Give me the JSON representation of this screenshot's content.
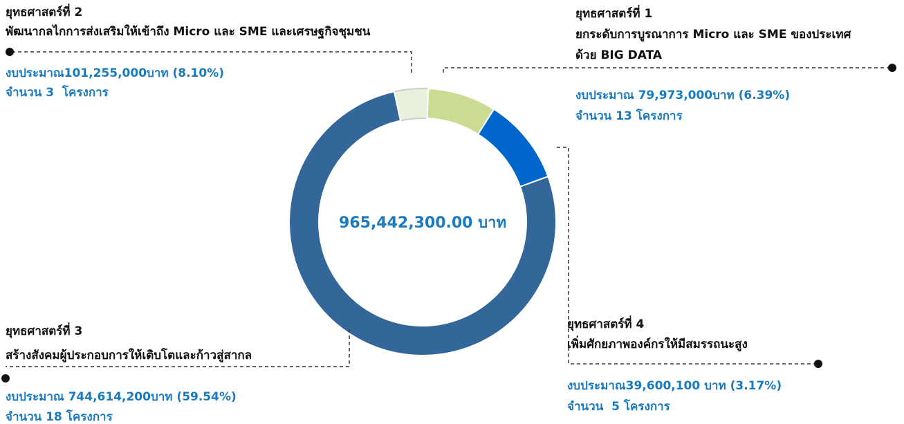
{
  "chart_data": {
    "type": "donut",
    "center_label": "965,442,300.00 บาท",
    "categories": [
      "ยุทธศาสตร์ที่ 4",
      "ยุทธศาสตร์ที่ 1",
      "ยุทธศาสตร์ที่ 2",
      "ยุทธศาสตร์ที่ 3"
    ],
    "descriptions": [
      [
        "เพิ่มศักยภาพองค์กรให้มีสมรรถนะสูง"
      ],
      [
        "ยกระดับการบูรณาการ Micro และ SME ของประเทศ",
        "ด้วย BIG DATA"
      ],
      [
        "พัฒนากลไกการส่งเสริมให้เข้าถึง Micro และ SME และเศรษฐกิจชุมชน"
      ],
      [
        "สร้างสังคมผู้ประกอบการให้เติบโตและก้าวสู่สากล"
      ]
    ],
    "values": [
      39600100,
      79973000,
      101255000,
      744614200
    ],
    "value_labels": [
      "งบประมาณ39,600,100 บาท (3.17%)",
      "งบประมาณ 79,973,000บาท (6.39%)",
      "งบประมาณ101,255,000บาท (8.10%)",
      "งบประมาณ 744,614,200บาท (59.54%)"
    ],
    "project_labels": [
      "จำนวน  5 โครงการ",
      "จำนวน 13 โครงการ",
      "จำนวน 3  โครงการ",
      "จำนวน 18 โครงการ"
    ],
    "colors": [
      "#e9f1dc",
      "#c9dc92",
      "#0066cc",
      "#336699"
    ]
  }
}
